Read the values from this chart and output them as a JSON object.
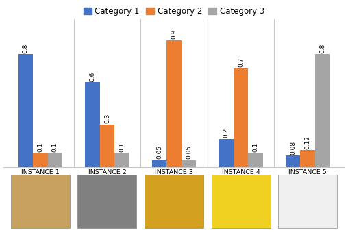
{
  "instances": [
    "INSTANCE 1",
    "INSTANCE 2",
    "INSTANCE 3",
    "INSTANCE 4",
    "INSTANCE 5"
  ],
  "category1": [
    0.8,
    0.6,
    0.05,
    0.2,
    0.08
  ],
  "category2": [
    0.1,
    0.3,
    0.9,
    0.7,
    0.12
  ],
  "category3": [
    0.1,
    0.1,
    0.05,
    0.1,
    0.8
  ],
  "color1": "#4472C4",
  "color2": "#ED7D31",
  "color3": "#A5A5A5",
  "legend_labels": [
    "Category 1",
    "Category 2",
    "Category 3"
  ],
  "ylim": [
    0,
    1.05
  ],
  "bar_width": 0.22,
  "label_fontsize": 6.5,
  "tick_fontsize": 6.8,
  "legend_fontsize": 8.5,
  "background_color": "#FFFFFF",
  "divider_color": "#C8C8C8",
  "img_colors": [
    [
      "#C8A060",
      "#8B7050",
      "#6090A0"
    ],
    [
      "#808080",
      "#A0A0B0",
      "#C0C8D0"
    ],
    [
      "#D4A020",
      "#C85010",
      "#E0C040"
    ],
    [
      "#F0D020",
      "#60A040",
      "#E8E060"
    ],
    [
      "#F0F0F0",
      "#5080A0",
      "#304060"
    ]
  ]
}
